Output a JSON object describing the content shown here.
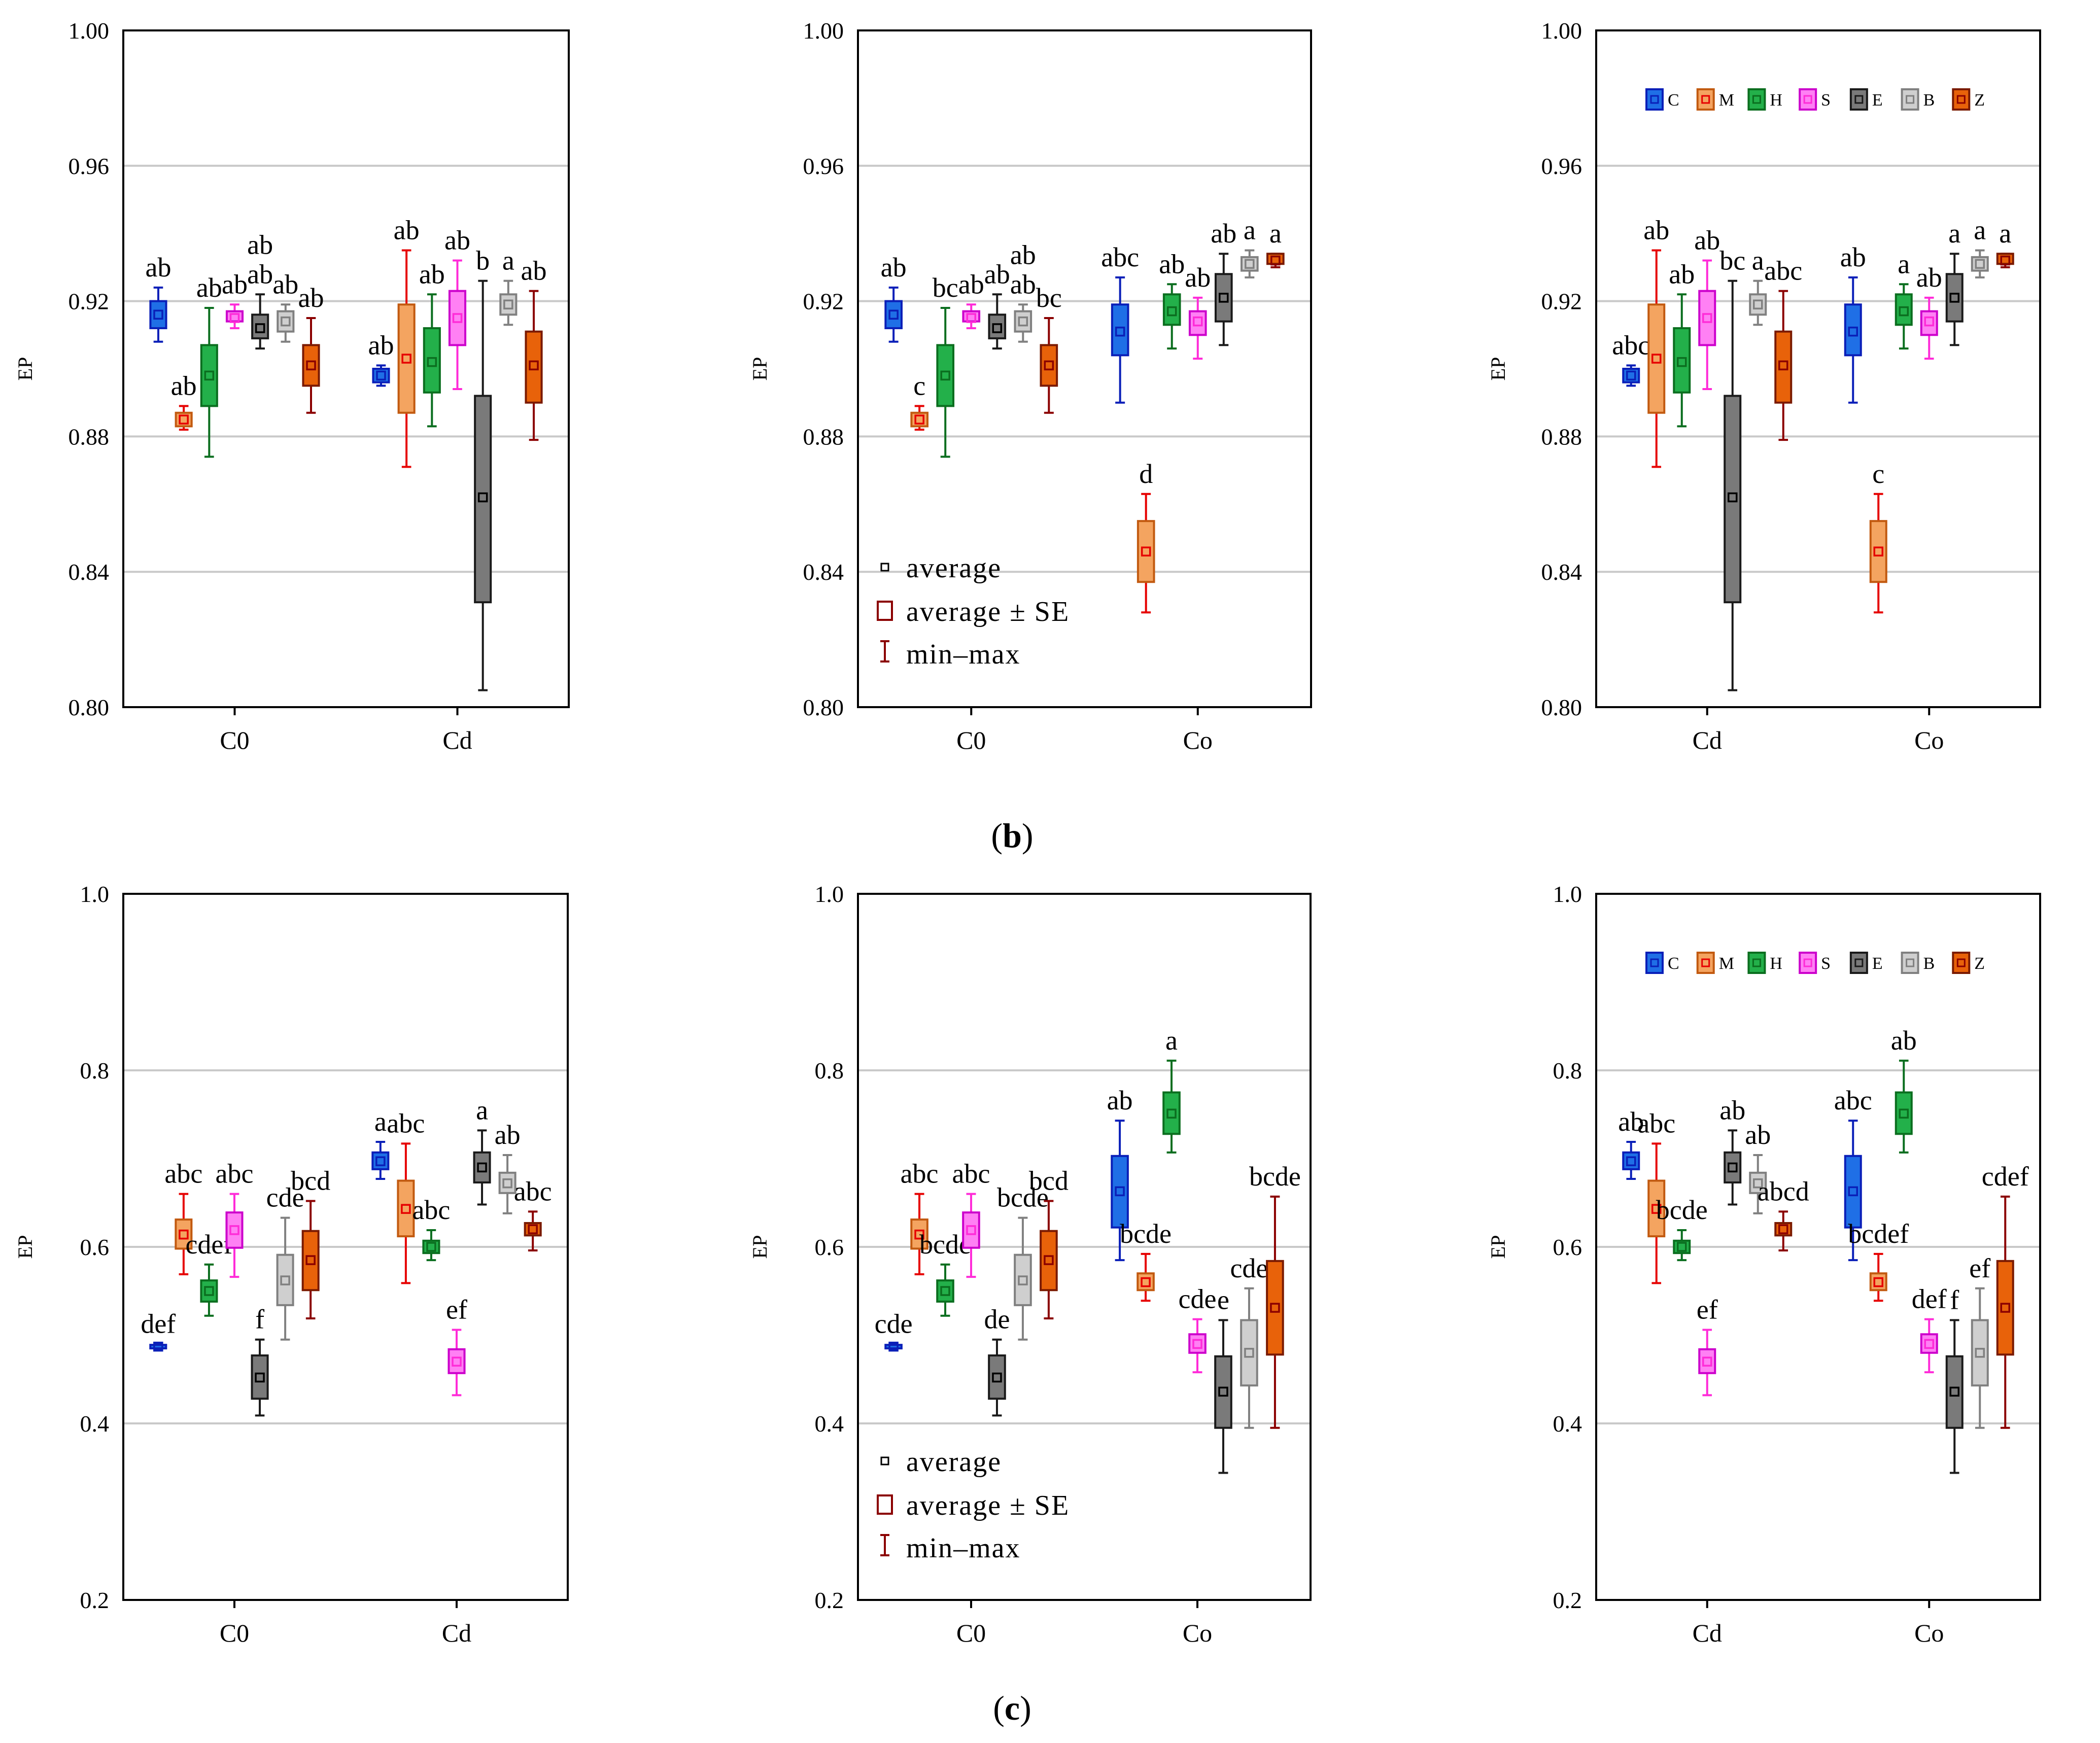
{
  "colors": {
    "C": [
      "#1f6fe6",
      "#0a1fb8",
      "#0a1fb8"
    ],
    "M": [
      "#f4a460",
      "#c25a10",
      "#e60000"
    ],
    "H": [
      "#23b04a",
      "#0b6e1f",
      "#0b6e1f"
    ],
    "S": [
      "#ff80f4",
      "#cc00cc",
      "#ff2bd8"
    ],
    "E": [
      "#7a7a7a",
      "#1a1a1a",
      "#1a1a1a"
    ],
    "B": [
      "#cfcfcf",
      "#808080",
      "#808080"
    ],
    "Z": [
      "#e8620a",
      "#7a1a00",
      "#8b0000"
    ]
  },
  "legend_items": [
    "C",
    "M",
    "H",
    "S",
    "E",
    "B",
    "Z"
  ],
  "legend_stats": [
    "average",
    "average ± SE",
    "min–max"
  ],
  "captions": {
    "b": {
      "open": "(",
      "letter": "b",
      "close": ")"
    },
    "c": {
      "open": "(",
      "letter": "c",
      "close": ")"
    }
  },
  "chart_data": [
    {
      "type": "box",
      "ylabel": "EP",
      "ylim": [
        0.8,
        1.0
      ],
      "yticks": [
        "0.80",
        "0.84",
        "0.88",
        "0.92",
        "0.96",
        "1.00"
      ],
      "categories": [
        "C0",
        "Cd"
      ],
      "groups": [
        [
          {
            "s": "C",
            "mean": 0.916,
            "lo": 0.912,
            "hi": 0.92,
            "min": 0.908,
            "max": 0.924,
            "label": "ab"
          },
          {
            "s": "M",
            "mean": 0.885,
            "lo": 0.883,
            "hi": 0.887,
            "min": 0.882,
            "max": 0.889,
            "label": "ab"
          },
          {
            "s": "H",
            "mean": 0.898,
            "lo": 0.889,
            "hi": 0.907,
            "min": 0.874,
            "max": 0.918,
            "label": "ab"
          },
          {
            "s": "S",
            "mean": 0.915,
            "lo": 0.914,
            "hi": 0.917,
            "min": 0.912,
            "max": 0.919,
            "label": "ab"
          },
          {
            "s": "E",
            "mean": 0.912,
            "lo": 0.909,
            "hi": 0.916,
            "min": 0.906,
            "max": 0.922,
            "label": "ab\nab"
          },
          {
            "s": "B",
            "mean": 0.914,
            "lo": 0.911,
            "hi": 0.917,
            "min": 0.908,
            "max": 0.919,
            "label": "ab"
          },
          {
            "s": "Z",
            "mean": 0.901,
            "lo": 0.895,
            "hi": 0.907,
            "min": 0.887,
            "max": 0.915,
            "label": "ab"
          }
        ],
        [
          {
            "s": "C",
            "mean": 0.898,
            "lo": 0.896,
            "hi": 0.9,
            "min": 0.895,
            "max": 0.901,
            "label": "ab"
          },
          {
            "s": "M",
            "mean": 0.903,
            "lo": 0.887,
            "hi": 0.919,
            "min": 0.871,
            "max": 0.935,
            "label": "ab"
          },
          {
            "s": "H",
            "mean": 0.902,
            "lo": 0.893,
            "hi": 0.912,
            "min": 0.883,
            "max": 0.922,
            "label": "ab"
          },
          {
            "s": "S",
            "mean": 0.915,
            "lo": 0.907,
            "hi": 0.923,
            "min": 0.894,
            "max": 0.932,
            "label": "ab"
          },
          {
            "s": "E",
            "mean": 0.862,
            "lo": 0.831,
            "hi": 0.892,
            "min": 0.805,
            "max": 0.926,
            "label": "b"
          },
          {
            "s": "B",
            "mean": 0.919,
            "lo": 0.916,
            "hi": 0.922,
            "min": 0.913,
            "max": 0.926,
            "label": "a"
          },
          {
            "s": "Z",
            "mean": 0.901,
            "lo": 0.89,
            "hi": 0.911,
            "min": 0.879,
            "max": 0.923,
            "label": "ab"
          }
        ]
      ]
    },
    {
      "type": "box",
      "ylabel": "EP",
      "ylim": [
        0.8,
        1.0
      ],
      "yticks": [
        "0.80",
        "0.84",
        "0.88",
        "0.92",
        "0.96",
        "1.00"
      ],
      "categories": [
        "C0",
        "Co"
      ],
      "legend": "stats",
      "groups": [
        [
          {
            "s": "C",
            "mean": 0.916,
            "lo": 0.912,
            "hi": 0.92,
            "min": 0.908,
            "max": 0.924,
            "label": "ab"
          },
          {
            "s": "M",
            "mean": 0.885,
            "lo": 0.883,
            "hi": 0.887,
            "min": 0.882,
            "max": 0.889,
            "label": "c"
          },
          {
            "s": "H",
            "mean": 0.898,
            "lo": 0.889,
            "hi": 0.907,
            "min": 0.874,
            "max": 0.918,
            "label": "bc"
          },
          {
            "s": "S",
            "mean": 0.915,
            "lo": 0.914,
            "hi": 0.917,
            "min": 0.912,
            "max": 0.919,
            "label": "ab"
          },
          {
            "s": "E",
            "mean": 0.912,
            "lo": 0.909,
            "hi": 0.916,
            "min": 0.906,
            "max": 0.922,
            "label": "ab"
          },
          {
            "s": "B",
            "mean": 0.914,
            "lo": 0.911,
            "hi": 0.917,
            "min": 0.908,
            "max": 0.919,
            "label": "ab\nab"
          },
          {
            "s": "Z",
            "mean": 0.901,
            "lo": 0.895,
            "hi": 0.907,
            "min": 0.887,
            "max": 0.915,
            "label": "bc"
          }
        ],
        [
          {
            "s": "C",
            "mean": 0.911,
            "lo": 0.904,
            "hi": 0.919,
            "min": 0.89,
            "max": 0.927,
            "label": "abc"
          },
          {
            "s": "M",
            "mean": 0.846,
            "lo": 0.837,
            "hi": 0.855,
            "min": 0.828,
            "max": 0.863,
            "label": "d"
          },
          {
            "s": "H",
            "mean": 0.917,
            "lo": 0.913,
            "hi": 0.922,
            "min": 0.906,
            "max": 0.925,
            "label": "ab"
          },
          {
            "s": "S",
            "mean": 0.914,
            "lo": 0.91,
            "hi": 0.917,
            "min": 0.903,
            "max": 0.921,
            "label": "ab"
          },
          {
            "s": "E",
            "mean": 0.921,
            "lo": 0.914,
            "hi": 0.928,
            "min": 0.907,
            "max": 0.934,
            "label": "ab"
          },
          {
            "s": "B",
            "mean": 0.931,
            "lo": 0.929,
            "hi": 0.933,
            "min": 0.927,
            "max": 0.935,
            "label": "a"
          },
          {
            "s": "Z",
            "mean": 0.932,
            "lo": 0.931,
            "hi": 0.934,
            "min": 0.93,
            "max": 0.934,
            "label": "a"
          }
        ]
      ]
    },
    {
      "type": "box",
      "ylabel": "EP",
      "ylim": [
        0.8,
        1.0
      ],
      "yticks": [
        "0.80",
        "0.84",
        "0.88",
        "0.92",
        "0.96",
        "1.00"
      ],
      "categories": [
        "Cd",
        "Co"
      ],
      "legend": "series",
      "groups": [
        [
          {
            "s": "C",
            "mean": 0.898,
            "lo": 0.896,
            "hi": 0.9,
            "min": 0.895,
            "max": 0.901,
            "label": "abc"
          },
          {
            "s": "M",
            "mean": 0.903,
            "lo": 0.887,
            "hi": 0.919,
            "min": 0.871,
            "max": 0.935,
            "label": "ab"
          },
          {
            "s": "H",
            "mean": 0.902,
            "lo": 0.893,
            "hi": 0.912,
            "min": 0.883,
            "max": 0.922,
            "label": "ab"
          },
          {
            "s": "S",
            "mean": 0.915,
            "lo": 0.907,
            "hi": 0.923,
            "min": 0.894,
            "max": 0.932,
            "label": "ab"
          },
          {
            "s": "E",
            "mean": 0.862,
            "lo": 0.831,
            "hi": 0.892,
            "min": 0.805,
            "max": 0.926,
            "label": "bc"
          },
          {
            "s": "B",
            "mean": 0.919,
            "lo": 0.916,
            "hi": 0.922,
            "min": 0.913,
            "max": 0.926,
            "label": "a"
          },
          {
            "s": "Z",
            "mean": 0.901,
            "lo": 0.89,
            "hi": 0.911,
            "min": 0.879,
            "max": 0.923,
            "label": "abc"
          }
        ],
        [
          {
            "s": "C",
            "mean": 0.911,
            "lo": 0.904,
            "hi": 0.919,
            "min": 0.89,
            "max": 0.927,
            "label": "ab"
          },
          {
            "s": "M",
            "mean": 0.846,
            "lo": 0.837,
            "hi": 0.855,
            "min": 0.828,
            "max": 0.863,
            "label": "c"
          },
          {
            "s": "H",
            "mean": 0.917,
            "lo": 0.913,
            "hi": 0.922,
            "min": 0.906,
            "max": 0.925,
            "label": "a"
          },
          {
            "s": "S",
            "mean": 0.914,
            "lo": 0.91,
            "hi": 0.917,
            "min": 0.903,
            "max": 0.921,
            "label": "ab"
          },
          {
            "s": "E",
            "mean": 0.921,
            "lo": 0.914,
            "hi": 0.928,
            "min": 0.907,
            "max": 0.934,
            "label": "a"
          },
          {
            "s": "B",
            "mean": 0.931,
            "lo": 0.929,
            "hi": 0.933,
            "min": 0.927,
            "max": 0.935,
            "label": "a"
          },
          {
            "s": "Z",
            "mean": 0.932,
            "lo": 0.931,
            "hi": 0.934,
            "min": 0.93,
            "max": 0.934,
            "label": "a"
          }
        ]
      ]
    },
    {
      "type": "box",
      "ylabel": "EP",
      "ylim": [
        0.2,
        1.0
      ],
      "yticks": [
        "0.2",
        "0.4",
        "0.6",
        "0.8",
        "1.0"
      ],
      "categories": [
        "C0",
        "Cd"
      ],
      "groups": [
        [
          {
            "s": "C",
            "mean": 0.487,
            "lo": 0.485,
            "hi": 0.489,
            "min": 0.484,
            "max": 0.49,
            "label": "def"
          },
          {
            "s": "M",
            "mean": 0.614,
            "lo": 0.598,
            "hi": 0.631,
            "min": 0.569,
            "max": 0.66,
            "label": "abc"
          },
          {
            "s": "H",
            "mean": 0.55,
            "lo": 0.538,
            "hi": 0.562,
            "min": 0.522,
            "max": 0.58,
            "label": "cdef"
          },
          {
            "s": "S",
            "mean": 0.619,
            "lo": 0.599,
            "hi": 0.639,
            "min": 0.566,
            "max": 0.66,
            "label": "abc"
          },
          {
            "s": "E",
            "mean": 0.452,
            "lo": 0.428,
            "hi": 0.477,
            "min": 0.409,
            "max": 0.495,
            "label": "f"
          },
          {
            "s": "B",
            "mean": 0.562,
            "lo": 0.534,
            "hi": 0.591,
            "min": 0.495,
            "max": 0.633,
            "label": "cde"
          },
          {
            "s": "Z",
            "mean": 0.585,
            "lo": 0.551,
            "hi": 0.618,
            "min": 0.519,
            "max": 0.652,
            "label": "bcd"
          }
        ],
        [
          {
            "s": "C",
            "mean": 0.697,
            "lo": 0.688,
            "hi": 0.707,
            "min": 0.677,
            "max": 0.719,
            "label": "a"
          },
          {
            "s": "M",
            "mean": 0.643,
            "lo": 0.612,
            "hi": 0.675,
            "min": 0.559,
            "max": 0.717,
            "label": "abc"
          },
          {
            "s": "H",
            "mean": 0.6,
            "lo": 0.593,
            "hi": 0.607,
            "min": 0.585,
            "max": 0.619,
            "label": "abc"
          },
          {
            "s": "S",
            "mean": 0.47,
            "lo": 0.457,
            "hi": 0.484,
            "min": 0.432,
            "max": 0.506,
            "label": "ef"
          },
          {
            "s": "E",
            "mean": 0.69,
            "lo": 0.673,
            "hi": 0.707,
            "min": 0.648,
            "max": 0.732,
            "label": "a"
          },
          {
            "s": "B",
            "mean": 0.672,
            "lo": 0.661,
            "hi": 0.684,
            "min": 0.638,
            "max": 0.704,
            "label": "ab"
          },
          {
            "s": "Z",
            "mean": 0.62,
            "lo": 0.613,
            "hi": 0.627,
            "min": 0.596,
            "max": 0.64,
            "label": "abc"
          }
        ]
      ]
    },
    {
      "type": "box",
      "ylabel": "EP",
      "ylim": [
        0.2,
        1.0
      ],
      "yticks": [
        "0.2",
        "0.4",
        "0.6",
        "0.8",
        "1.0"
      ],
      "categories": [
        "C0",
        "Co"
      ],
      "legend": "stats",
      "groups": [
        [
          {
            "s": "C",
            "mean": 0.487,
            "lo": 0.485,
            "hi": 0.489,
            "min": 0.484,
            "max": 0.49,
            "label": "cde"
          },
          {
            "s": "M",
            "mean": 0.614,
            "lo": 0.598,
            "hi": 0.631,
            "min": 0.569,
            "max": 0.66,
            "label": "abc"
          },
          {
            "s": "H",
            "mean": 0.55,
            "lo": 0.538,
            "hi": 0.562,
            "min": 0.522,
            "max": 0.58,
            "label": "bcde"
          },
          {
            "s": "S",
            "mean": 0.619,
            "lo": 0.599,
            "hi": 0.639,
            "min": 0.566,
            "max": 0.66,
            "label": "abc"
          },
          {
            "s": "E",
            "mean": 0.452,
            "lo": 0.428,
            "hi": 0.477,
            "min": 0.409,
            "max": 0.495,
            "label": "de"
          },
          {
            "s": "B",
            "mean": 0.562,
            "lo": 0.534,
            "hi": 0.591,
            "min": 0.495,
            "max": 0.633,
            "label": "bcde"
          },
          {
            "s": "Z",
            "mean": 0.585,
            "lo": 0.551,
            "hi": 0.618,
            "min": 0.519,
            "max": 0.652,
            "label": "bcd"
          }
        ],
        [
          {
            "s": "C",
            "mean": 0.663,
            "lo": 0.622,
            "hi": 0.703,
            "min": 0.585,
            "max": 0.743,
            "label": "ab"
          },
          {
            "s": "M",
            "mean": 0.56,
            "lo": 0.551,
            "hi": 0.57,
            "min": 0.539,
            "max": 0.592,
            "label": "bcde"
          },
          {
            "s": "H",
            "mean": 0.751,
            "lo": 0.728,
            "hi": 0.775,
            "min": 0.707,
            "max": 0.811,
            "label": "a"
          },
          {
            "s": "S",
            "mean": 0.49,
            "lo": 0.48,
            "hi": 0.501,
            "min": 0.458,
            "max": 0.518,
            "label": "cde"
          },
          {
            "s": "E",
            "mean": 0.436,
            "lo": 0.395,
            "hi": 0.476,
            "min": 0.344,
            "max": 0.517,
            "label": "e"
          },
          {
            "s": "B",
            "mean": 0.48,
            "lo": 0.443,
            "hi": 0.517,
            "min": 0.395,
            "max": 0.553,
            "label": "cde"
          },
          {
            "s": "Z",
            "mean": 0.531,
            "lo": 0.478,
            "hi": 0.584,
            "min": 0.395,
            "max": 0.657,
            "label": "bcde"
          }
        ]
      ]
    },
    {
      "type": "box",
      "ylabel": "EP",
      "ylim": [
        0.2,
        1.0
      ],
      "yticks": [
        "0.2",
        "0.4",
        "0.6",
        "0.8",
        "1.0"
      ],
      "categories": [
        "Cd",
        "Co"
      ],
      "legend": "series",
      "groups": [
        [
          {
            "s": "C",
            "mean": 0.697,
            "lo": 0.688,
            "hi": 0.707,
            "min": 0.677,
            "max": 0.719,
            "label": "ab"
          },
          {
            "s": "M",
            "mean": 0.643,
            "lo": 0.612,
            "hi": 0.675,
            "min": 0.559,
            "max": 0.717,
            "label": "abc"
          },
          {
            "s": "H",
            "mean": 0.6,
            "lo": 0.593,
            "hi": 0.607,
            "min": 0.585,
            "max": 0.619,
            "label": "bcde"
          },
          {
            "s": "S",
            "mean": 0.47,
            "lo": 0.457,
            "hi": 0.484,
            "min": 0.432,
            "max": 0.506,
            "label": "ef"
          },
          {
            "s": "E",
            "mean": 0.69,
            "lo": 0.673,
            "hi": 0.707,
            "min": 0.648,
            "max": 0.732,
            "label": "ab"
          },
          {
            "s": "B",
            "mean": 0.672,
            "lo": 0.661,
            "hi": 0.684,
            "min": 0.638,
            "max": 0.704,
            "label": "ab"
          },
          {
            "s": "Z",
            "mean": 0.62,
            "lo": 0.613,
            "hi": 0.627,
            "min": 0.596,
            "max": 0.64,
            "label": "abcd"
          }
        ],
        [
          {
            "s": "C",
            "mean": 0.663,
            "lo": 0.622,
            "hi": 0.703,
            "min": 0.585,
            "max": 0.743,
            "label": "abc"
          },
          {
            "s": "M",
            "mean": 0.56,
            "lo": 0.551,
            "hi": 0.57,
            "min": 0.539,
            "max": 0.592,
            "label": "bcdef"
          },
          {
            "s": "H",
            "mean": 0.751,
            "lo": 0.728,
            "hi": 0.775,
            "min": 0.707,
            "max": 0.811,
            "label": "ab"
          },
          {
            "s": "S",
            "mean": 0.49,
            "lo": 0.48,
            "hi": 0.501,
            "min": 0.458,
            "max": 0.518,
            "label": "def"
          },
          {
            "s": "E",
            "mean": 0.436,
            "lo": 0.395,
            "hi": 0.476,
            "min": 0.344,
            "max": 0.517,
            "label": "f"
          },
          {
            "s": "B",
            "mean": 0.48,
            "lo": 0.443,
            "hi": 0.517,
            "min": 0.395,
            "max": 0.553,
            "label": "ef"
          },
          {
            "s": "Z",
            "mean": 0.531,
            "lo": 0.478,
            "hi": 0.584,
            "min": 0.395,
            "max": 0.657,
            "label": "cdef"
          }
        ]
      ]
    }
  ]
}
